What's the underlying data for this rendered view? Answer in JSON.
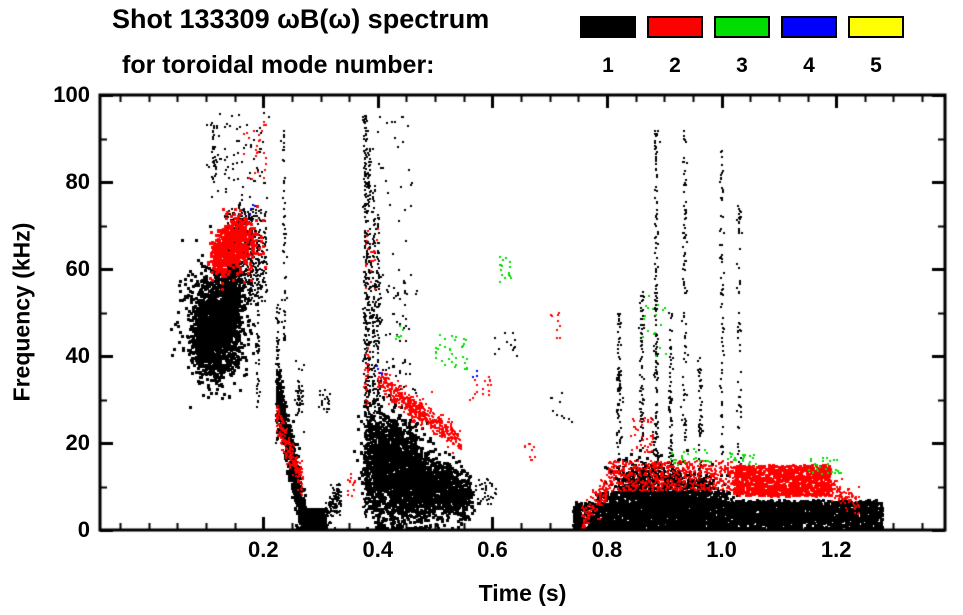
{
  "chart_data": {
    "type": "scatter",
    "title": "Shot 133309 ωB(ω) spectrum",
    "subtitle": "for toroidal mode number:",
    "xlabel": "Time (s)",
    "ylabel": "Frequency (kHz)",
    "xlim": [
      -0.085,
      1.39
    ],
    "ylim": [
      0,
      100
    ],
    "xticks": [
      0.2,
      0.4,
      0.6,
      0.8,
      1.0,
      1.2
    ],
    "xtick_labels": [
      "0.2",
      "0.4",
      "0.6",
      "0.8",
      "1.0",
      "1.2"
    ],
    "yticks": [
      0,
      20,
      40,
      60,
      80,
      100
    ],
    "ytick_labels": [
      "0",
      "20",
      "40",
      "60",
      "80",
      "100"
    ],
    "x_minor_step": 0.05,
    "y_minor_step": 10,
    "grid": false,
    "legend_position": "top-right",
    "legend": [
      {
        "label": "1",
        "color": "#000000"
      },
      {
        "label": "2",
        "color": "#ff0000"
      },
      {
        "label": "3",
        "color": "#00dd00"
      },
      {
        "label": "4",
        "color": "#0000ff"
      },
      {
        "label": "5",
        "color": "#ffff00"
      }
    ],
    "series": [
      {
        "name": "1",
        "color": "#000000",
        "clusters": [
          {
            "type": "blob",
            "t": 0.115,
            "f": 47,
            "rt": 0.024,
            "rf": 6.5,
            "n": 1500,
            "s": 3
          },
          {
            "type": "blob",
            "t": 0.095,
            "f": 45,
            "rt": 0.008,
            "rf": 3.5,
            "n": 300,
            "s": 3
          },
          {
            "type": "blob",
            "t": 0.14,
            "f": 53,
            "rt": 0.01,
            "rf": 5,
            "n": 400,
            "s": 3
          },
          {
            "type": "band",
            "t0": 0.135,
            "t1": 0.205,
            "f0": 52,
            "f1": 74,
            "n": 400,
            "s": 2
          },
          {
            "type": "vstreak",
            "t": 0.147,
            "f0": 55,
            "f1": 72,
            "n": 50
          },
          {
            "type": "vstreak",
            "t": 0.157,
            "f0": 53,
            "f1": 76,
            "n": 55
          },
          {
            "type": "vstreak",
            "t": 0.167,
            "f0": 56,
            "f1": 74,
            "n": 50
          },
          {
            "type": "vstreak",
            "t": 0.178,
            "f0": 52,
            "f1": 70,
            "n": 45
          },
          {
            "type": "vstreak",
            "t": 0.19,
            "f0": 28,
            "f1": 68,
            "n": 70
          },
          {
            "type": "band",
            "t0": 0.1,
            "t1": 0.21,
            "f0": 76,
            "f1": 96,
            "n": 80,
            "s": 2
          },
          {
            "type": "vstreak",
            "t": 0.112,
            "f0": 80,
            "f1": 95,
            "n": 25
          },
          {
            "type": "chirp",
            "t0": 0.222,
            "f0": 33,
            "t1": 0.272,
            "f1": 1,
            "wf": 3.5,
            "n": 650,
            "s": 3
          },
          {
            "type": "band",
            "t0": 0.262,
            "t1": 0.308,
            "f0": 0,
            "f1": 5,
            "n": 380,
            "s": 3
          },
          {
            "type": "chirp",
            "t0": 0.302,
            "f0": 2,
            "t1": 0.335,
            "f1": 9,
            "wf": 1.8,
            "n": 150,
            "s": 2
          },
          {
            "type": "vstreak",
            "t": 0.225,
            "f0": 20,
            "f1": 52,
            "n": 60
          },
          {
            "type": "vstreak",
            "t": 0.236,
            "f0": 40,
            "f1": 92,
            "n": 55
          },
          {
            "type": "blob",
            "t": 0.262,
            "f": 31,
            "rt": 0.004,
            "rf": 3,
            "n": 45,
            "s": 2
          },
          {
            "type": "band",
            "t0": 0.295,
            "t1": 0.315,
            "f0": 27,
            "f1": 33,
            "n": 20,
            "s": 2
          },
          {
            "type": "vstreak",
            "t": 0.378,
            "f0": 2,
            "f1": 96,
            "n": 230
          },
          {
            "type": "vstreak",
            "t": 0.384,
            "f0": 4,
            "f1": 88,
            "n": 170
          },
          {
            "type": "vstreak",
            "t": 0.392,
            "f0": 15,
            "f1": 80,
            "n": 120
          },
          {
            "type": "vstreak",
            "t": 0.4,
            "f0": 30,
            "f1": 72,
            "n": 80
          },
          {
            "type": "blob",
            "t": 0.398,
            "f": 15,
            "rt": 0.012,
            "rf": 6,
            "n": 650,
            "s": 3
          },
          {
            "type": "blob",
            "t": 0.428,
            "f": 14,
            "rt": 0.013,
            "rf": 6.5,
            "n": 700,
            "s": 3
          },
          {
            "type": "blob",
            "t": 0.458,
            "f": 12,
            "rt": 0.012,
            "rf": 5.5,
            "n": 600,
            "s": 3
          },
          {
            "type": "blob",
            "t": 0.49,
            "f": 10,
            "rt": 0.013,
            "rf": 4,
            "n": 420,
            "s": 3
          },
          {
            "type": "blob",
            "t": 0.523,
            "f": 9,
            "rt": 0.012,
            "rf": 3.2,
            "n": 320,
            "s": 3
          },
          {
            "type": "blob",
            "t": 0.55,
            "f": 8,
            "rt": 0.008,
            "rf": 2.6,
            "n": 170,
            "s": 3
          },
          {
            "type": "band",
            "t0": 0.4,
            "t1": 0.47,
            "f0": 28,
            "f1": 60,
            "n": 70,
            "s": 2
          },
          {
            "type": "band",
            "t0": 0.38,
            "t1": 0.46,
            "f0": 62,
            "f1": 96,
            "n": 30,
            "s": 2
          },
          {
            "type": "band",
            "t0": 0.56,
            "t1": 0.605,
            "f0": 6,
            "f1": 12,
            "n": 40,
            "s": 2
          },
          {
            "type": "band",
            "t0": 0.6,
            "t1": 0.645,
            "f0": 40,
            "f1": 46,
            "n": 12,
            "s": 2
          },
          {
            "type": "band",
            "t0": 0.7,
            "t1": 0.74,
            "f0": 25,
            "f1": 32,
            "n": 10,
            "s": 2
          },
          {
            "type": "band",
            "t0": 0.74,
            "t1": 1.28,
            "f0": 0,
            "f1": 6.5,
            "n": 2600,
            "s": 3
          },
          {
            "type": "band",
            "t0": 0.78,
            "t1": 1.02,
            "f0": 0,
            "f1": 9,
            "n": 900,
            "s": 3
          },
          {
            "type": "blob",
            "t": 0.85,
            "f": 9,
            "rt": 0.02,
            "rf": 3.5,
            "n": 450,
            "s": 3
          },
          {
            "type": "blob",
            "t": 0.905,
            "f": 8.5,
            "rt": 0.022,
            "rf": 3.5,
            "n": 420,
            "s": 3
          },
          {
            "type": "blob",
            "t": 0.96,
            "f": 7.5,
            "rt": 0.018,
            "rf": 3,
            "n": 300,
            "s": 3
          },
          {
            "type": "vstreak",
            "t": 0.82,
            "f0": 8,
            "f1": 50,
            "n": 90
          },
          {
            "type": "vstreak",
            "t": 0.86,
            "f0": 5,
            "f1": 55,
            "n": 110
          },
          {
            "type": "vstreak",
            "t": 0.885,
            "f0": 10,
            "f1": 92,
            "n": 150
          },
          {
            "type": "vstreak",
            "t": 0.91,
            "f0": 8,
            "f1": 50,
            "n": 85
          },
          {
            "type": "vstreak",
            "t": 0.935,
            "f0": 20,
            "f1": 93,
            "n": 90
          },
          {
            "type": "vstreak",
            "t": 0.962,
            "f0": 5,
            "f1": 40,
            "n": 70
          },
          {
            "type": "vstreak",
            "t": 1.0,
            "f0": 15,
            "f1": 88,
            "n": 70
          },
          {
            "type": "vstreak",
            "t": 1.03,
            "f0": 10,
            "f1": 75,
            "n": 60
          },
          {
            "type": "band",
            "t0": 1.02,
            "t1": 1.27,
            "f0": 2,
            "f1": 7,
            "n": 700,
            "s": 3
          }
        ]
      },
      {
        "name": "2",
        "color": "#ff0000",
        "clusters": [
          {
            "type": "blob",
            "t": 0.155,
            "f": 66,
            "rt": 0.018,
            "rf": 3.2,
            "n": 420,
            "s": 3
          },
          {
            "type": "blob",
            "t": 0.126,
            "f": 63,
            "rt": 0.01,
            "rf": 2.6,
            "n": 200,
            "s": 3
          },
          {
            "type": "band",
            "t0": 0.165,
            "t1": 0.205,
            "f0": 80,
            "f1": 94,
            "n": 26,
            "s": 2
          },
          {
            "type": "chirp",
            "t0": 0.222,
            "f0": 26,
            "t1": 0.268,
            "f1": 11,
            "wf": 1.8,
            "n": 200,
            "s": 2
          },
          {
            "type": "chirp",
            "t0": 0.4,
            "f0": 35,
            "t1": 0.478,
            "f1": 26,
            "wf": 1.4,
            "n": 260,
            "s": 2
          },
          {
            "type": "chirp",
            "t0": 0.452,
            "f0": 30,
            "t1": 0.545,
            "f1": 20,
            "wf": 1.3,
            "n": 230,
            "s": 2
          },
          {
            "type": "band",
            "t0": 0.49,
            "t1": 0.53,
            "f0": 22,
            "f1": 26,
            "n": 45,
            "s": 2
          },
          {
            "type": "band",
            "t0": 0.56,
            "t1": 0.6,
            "f0": 30,
            "f1": 36,
            "n": 16,
            "s": 2
          },
          {
            "type": "band",
            "t0": 0.345,
            "t1": 0.362,
            "f0": 8,
            "f1": 13,
            "n": 14,
            "s": 2
          },
          {
            "type": "band",
            "t0": 0.378,
            "t1": 0.4,
            "f0": 55,
            "f1": 70,
            "n": 20,
            "s": 2
          },
          {
            "type": "vstreak",
            "t": 0.38,
            "f0": 28,
            "f1": 42,
            "n": 25
          },
          {
            "type": "chirp",
            "t0": 0.755,
            "f0": 2,
            "t1": 0.8,
            "f1": 10,
            "wf": 1.6,
            "n": 130,
            "s": 2
          },
          {
            "type": "band",
            "t0": 0.8,
            "t1": 1.02,
            "f0": 9,
            "f1": 16,
            "n": 650,
            "s": 2
          },
          {
            "type": "band",
            "t0": 1.02,
            "t1": 1.19,
            "f0": 8,
            "f1": 15,
            "n": 900,
            "s": 3
          },
          {
            "type": "chirp",
            "t0": 1.19,
            "f0": 10,
            "t1": 1.24,
            "f1": 6,
            "wf": 1.4,
            "n": 90,
            "s": 2
          },
          {
            "type": "band",
            "t0": 0.84,
            "t1": 0.88,
            "f0": 18,
            "f1": 26,
            "n": 40,
            "s": 2
          },
          {
            "type": "band",
            "t0": 0.7,
            "t1": 0.72,
            "f0": 44,
            "f1": 50,
            "n": 10,
            "s": 2
          },
          {
            "type": "band",
            "t0": 0.655,
            "t1": 0.675,
            "f0": 16,
            "f1": 20,
            "n": 10,
            "s": 2
          }
        ]
      },
      {
        "name": "3",
        "color": "#00dd00",
        "clusters": [
          {
            "type": "band",
            "t0": 0.5,
            "t1": 0.555,
            "f0": 37,
            "f1": 45,
            "n": 35,
            "s": 2
          },
          {
            "type": "band",
            "t0": 0.61,
            "t1": 0.635,
            "f0": 57,
            "f1": 63,
            "n": 16,
            "s": 2
          },
          {
            "type": "band",
            "t0": 0.86,
            "t1": 0.905,
            "f0": 40,
            "f1": 56,
            "n": 18,
            "s": 2
          },
          {
            "type": "band",
            "t0": 0.91,
            "t1": 0.98,
            "f0": 15,
            "f1": 19,
            "n": 24,
            "s": 2
          },
          {
            "type": "band",
            "t0": 1.01,
            "t1": 1.06,
            "f0": 15,
            "f1": 18,
            "n": 20,
            "s": 2
          },
          {
            "type": "band",
            "t0": 1.15,
            "t1": 1.21,
            "f0": 13,
            "f1": 17,
            "n": 26,
            "s": 2
          },
          {
            "type": "band",
            "t0": 0.43,
            "t1": 0.447,
            "f0": 44,
            "f1": 48,
            "n": 6,
            "s": 2
          }
        ]
      },
      {
        "name": "4",
        "color": "#0000ff",
        "clusters": [
          {
            "type": "band",
            "t0": 0.175,
            "t1": 0.186,
            "f0": 72,
            "f1": 75,
            "n": 4,
            "s": 2
          },
          {
            "type": "band",
            "t0": 0.398,
            "t1": 0.408,
            "f0": 36,
            "f1": 39,
            "n": 4,
            "s": 2
          },
          {
            "type": "band",
            "t0": 0.565,
            "t1": 0.575,
            "f0": 34,
            "f1": 37,
            "n": 3,
            "s": 2
          }
        ]
      },
      {
        "name": "5",
        "color": "#ffff00",
        "clusters": []
      }
    ]
  }
}
